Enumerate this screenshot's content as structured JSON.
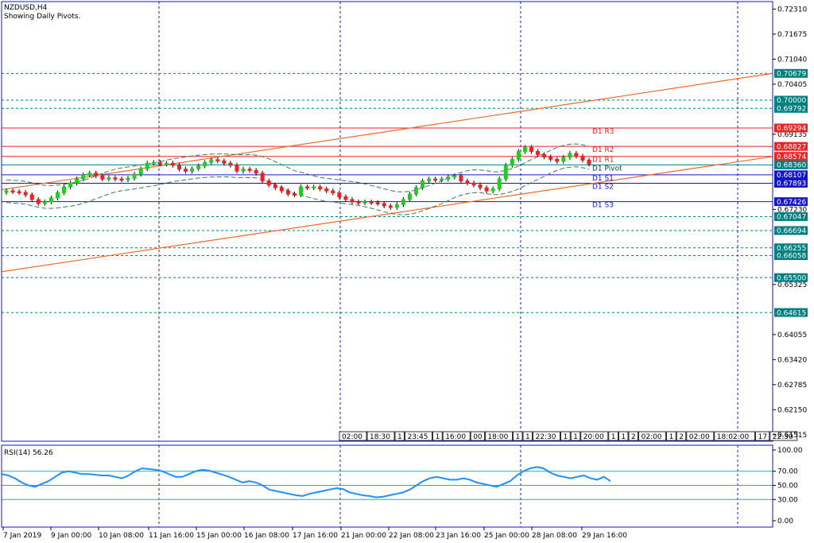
{
  "main_panel": {
    "title": "NZDUSD,H4",
    "subtitle": "Showing Daily Pivots.",
    "y_ticks": [
      "0.72310",
      "0.71675",
      "0.71040",
      "0.70405",
      "0.69135",
      "0.67230",
      "0.65325",
      "0.64055",
      "0.63420",
      "0.62785",
      "0.62150",
      "0.61515"
    ],
    "price_badges": [
      {
        "text": "0.70679",
        "color": "#007f7f"
      },
      {
        "text": "0.70000",
        "color": "#007f7f"
      },
      {
        "text": "0.69792",
        "color": "#007f7f"
      },
      {
        "text": "0.69294",
        "color": "#ee2222"
      },
      {
        "text": "0.68827",
        "color": "#ee2222"
      },
      {
        "text": "0.68574",
        "color": "#ee2222"
      },
      {
        "text": "0.68360",
        "color": "#007f7f"
      },
      {
        "text": "0.68107",
        "color": "#1515cc"
      },
      {
        "text": "0.67893",
        "color": "#1515cc"
      },
      {
        "text": "0.67426",
        "color": "#1515cc"
      },
      {
        "text": "0.67047",
        "color": "#007f7f"
      },
      {
        "text": "0.66694",
        "color": "#007f7f"
      },
      {
        "text": "0.66255",
        "color": "#007f7f"
      },
      {
        "text": "0.66058",
        "color": "#007f7f"
      },
      {
        "text": "0.65500",
        "color": "#007f7f"
      },
      {
        "text": "0.64615",
        "color": "#007f7f"
      }
    ],
    "pivot_labels": [
      "D1 R3",
      "D1 R2",
      "D1 R1",
      "D1 Pivot",
      "D1 S1",
      "D1 S2",
      "D1 S3"
    ],
    "time_boxes": [
      "02:00",
      "18:30",
      "1",
      "23:45",
      "1",
      "16:00",
      "00",
      "18:00",
      "1",
      "1",
      "22:30",
      "1",
      "1",
      "20:00",
      "1",
      "1",
      "2",
      "02:00",
      "1",
      "2",
      "02:00",
      "18:02:00",
      "17",
      "22:30"
    ]
  },
  "rsi_panel": {
    "title": "RSI(14) 56.26",
    "y_ticks": [
      "100.00",
      "70.00",
      "50.00",
      "30.00",
      "0.00"
    ]
  },
  "x_axis": {
    "labels": [
      "7 Jan 2019",
      "9 Jan 00:00",
      "10 Jan 08:00",
      "11 Jan 16:00",
      "15 Jan 00:00",
      "16 Jan 08:00",
      "17 Jan 16:00",
      "21 Jan 00:00",
      "22 Jan 08:00",
      "23 Jan 16:00",
      "25 Jan 00:00",
      "28 Jan 08:00",
      "29 Jan 16:00"
    ]
  },
  "colors": {
    "bull_candle": "#22cc22",
    "bear_candle": "#ee2222",
    "resistance": "#ee2222",
    "support": "#1515cc",
    "pivot": "#007f7f",
    "trendline": "#f06a2a",
    "grid": "#1515cc",
    "rsi_line": "#1e90ff",
    "rsi_levels": "#20b2aa"
  },
  "chart_data": {
    "type": "candlestick",
    "symbol": "NZDUSD",
    "timeframe": "H4",
    "ylim": [
      0.6135,
      0.725
    ],
    "closes": [
      0.677,
      0.6768,
      0.6766,
      0.676,
      0.6748,
      0.6738,
      0.6742,
      0.6752,
      0.6765,
      0.678,
      0.679,
      0.68,
      0.681,
      0.6815,
      0.6808,
      0.68,
      0.6803,
      0.68,
      0.6798,
      0.6802,
      0.6812,
      0.6826,
      0.684,
      0.6842,
      0.6838,
      0.684,
      0.6835,
      0.6825,
      0.682,
      0.6826,
      0.6833,
      0.6842,
      0.6849,
      0.6846,
      0.684,
      0.6835,
      0.682,
      0.6825,
      0.6822,
      0.6815,
      0.6795,
      0.6785,
      0.6778,
      0.677,
      0.6762,
      0.676,
      0.678,
      0.6778,
      0.678,
      0.6775,
      0.677,
      0.6765,
      0.6755,
      0.6748,
      0.6742,
      0.674,
      0.6742,
      0.674,
      0.6738,
      0.6732,
      0.6728,
      0.6735,
      0.6748,
      0.6762,
      0.6778,
      0.6795,
      0.68,
      0.6798,
      0.68,
      0.6805,
      0.6808,
      0.6795,
      0.679,
      0.6785,
      0.6778,
      0.677,
      0.6775,
      0.68,
      0.6835,
      0.685,
      0.687,
      0.688,
      0.687,
      0.6862,
      0.6856,
      0.685,
      0.6845,
      0.6855,
      0.6865,
      0.6858,
      0.6848,
      0.6838
    ],
    "trendlines": [
      {
        "from": [
          0,
          0.6773
        ],
        "to": [
          1,
          0.7068
        ]
      },
      {
        "from": [
          0,
          0.6565
        ],
        "to": [
          1,
          0.6857
        ]
      }
    ],
    "pivots": {
      "R3": 0.69294,
      "R2": 0.68827,
      "R1": 0.68574,
      "Pivot": 0.6836,
      "S1": 0.68107,
      "S2": 0.67893,
      "S3": 0.67426
    },
    "levels": [
      0.70679,
      0.7,
      0.69792,
      0.67047,
      0.66694,
      0.66255,
      0.66058,
      0.655,
      0.64615
    ],
    "rsi": {
      "period": 14,
      "last": 56.26,
      "ylim": [
        0,
        100
      ],
      "levels": [
        70,
        50,
        30
      ],
      "values": [
        66,
        64,
        60,
        54,
        50,
        48,
        52,
        56,
        62,
        68,
        70,
        68,
        66,
        66,
        65,
        64,
        64,
        62,
        60,
        64,
        70,
        74,
        73,
        72,
        70,
        66,
        62,
        62,
        66,
        70,
        72,
        71,
        68,
        65,
        62,
        58,
        54,
        56,
        54,
        50,
        44,
        42,
        40,
        38,
        36,
        35,
        38,
        40,
        42,
        44,
        46,
        45,
        40,
        38,
        36,
        35,
        33,
        34,
        36,
        38,
        40,
        44,
        50,
        56,
        60,
        62,
        60,
        58,
        58,
        60,
        58,
        54,
        52,
        50,
        48,
        52,
        56,
        64,
        70,
        74,
        76,
        74,
        68,
        64,
        62,
        60,
        62,
        64,
        60,
        58,
        62,
        56
      ]
    }
  }
}
